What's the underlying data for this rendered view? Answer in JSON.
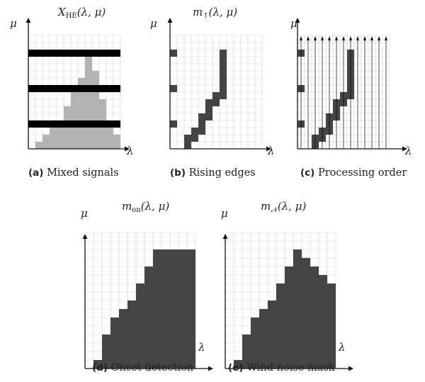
{
  "panels": [
    {
      "id": "a",
      "title_main": "X",
      "title_sub": "HE",
      "title_args": "(λ, μ)",
      "caption_tag": "(a)",
      "caption_text": "Mixed signals",
      "x_axis_label": "λ",
      "y_axis_label": "μ",
      "colors": {
        "fill": "#b3b3b3",
        "signal": "#000000"
      }
    },
    {
      "id": "b",
      "title_main": "m",
      "title_sub": "↑",
      "title_args": "(λ, μ)",
      "caption_tag": "(b)",
      "caption_text": "Rising edges",
      "x_axis_label": "λ",
      "y_axis_label": "μ",
      "colors": {
        "edge": "#444444"
      }
    },
    {
      "id": "c",
      "title_main": "",
      "title_sub": "",
      "title_args": "",
      "caption_tag": "(c)",
      "caption_text": "Processing order",
      "x_axis_label": "λ",
      "y_axis_label": "μ",
      "colors": {
        "edge": "#444444",
        "arrows": "#000000"
      }
    },
    {
      "id": "d",
      "title_main": "m",
      "title_sub": "on",
      "title_args": "(λ, μ)",
      "caption_tag": "(d)",
      "caption_text": "Onset detection",
      "x_axis_label": "λ",
      "y_axis_label": "μ",
      "colors": {
        "fill": "#444444"
      }
    },
    {
      "id": "e",
      "title_main": "m",
      "title_sub": "𝒩",
      "title_args": "(λ, μ)",
      "caption_tag": "(e)",
      "caption_text": "Wind noise mask",
      "x_axis_label": "λ",
      "y_axis_label": "μ",
      "colors": {
        "fill": "#444444"
      }
    }
  ]
}
